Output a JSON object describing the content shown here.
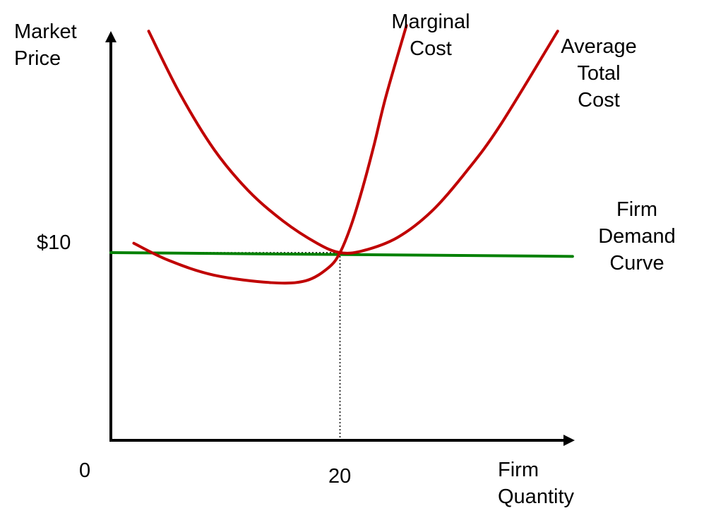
{
  "chart_data": {
    "type": "line",
    "title": "",
    "ylabel": [
      "Market",
      "Price"
    ],
    "xlabel": [
      "Firm",
      "Quantity"
    ],
    "origin_label": "0",
    "x_tick": {
      "value": 20,
      "label": "20"
    },
    "y_tick": {
      "value": 10,
      "label": "$10"
    },
    "xlim": [
      0,
      40
    ],
    "ylim": [
      0,
      20
    ],
    "grid": false,
    "legend": "none",
    "series": [
      {
        "name": [
          "Marginal",
          "Cost"
        ],
        "color": "#c00000",
        "x": [
          2,
          5,
          9,
          14,
          17,
          19,
          20,
          21,
          22,
          23,
          24,
          25.8
        ],
        "y": [
          10.5,
          9.6,
          8.8,
          8.4,
          8.5,
          9.2,
          10,
          11.5,
          13.5,
          15.8,
          18.3,
          22.1
        ]
      },
      {
        "name": [
          "Average",
          "Total",
          "Cost"
        ],
        "color": "#c00000",
        "x": [
          3.3,
          6,
          9,
          12,
          15,
          18,
          20,
          22,
          25,
          28,
          31,
          34,
          39
        ],
        "y": [
          21.8,
          18.5,
          15.5,
          13.3,
          11.7,
          10.5,
          10,
          10.1,
          10.8,
          12.2,
          14.3,
          16.8,
          21.8
        ]
      },
      {
        "name": [
          "Firm",
          "Demand",
          "Curve"
        ],
        "color": "#008000",
        "x": [
          0,
          40.3
        ],
        "y": [
          10,
          9.8
        ]
      }
    ],
    "guides": [
      {
        "from": [
          0,
          10
        ],
        "to": [
          20,
          10
        ]
      },
      {
        "from": [
          20,
          10
        ],
        "to": [
          20,
          0
        ]
      }
    ]
  }
}
